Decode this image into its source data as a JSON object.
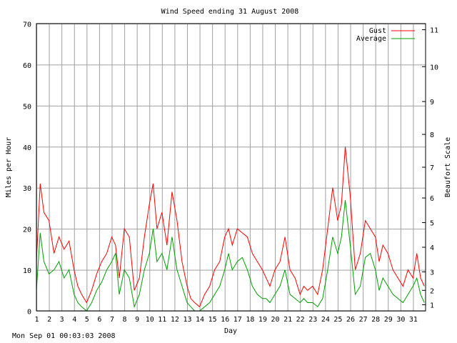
{
  "chart_data": {
    "type": "line",
    "title": "Wind Speed ending 31 August 2008",
    "xlabel": "Day",
    "ylabel": "Miles per Hour",
    "y2label": "Beaufort Scale",
    "xlim": [
      1,
      32
    ],
    "ylim": [
      0,
      70
    ],
    "grid": true,
    "legend_position": "top-right",
    "x_ticks": [
      1,
      2,
      3,
      4,
      5,
      6,
      7,
      8,
      9,
      10,
      11,
      12,
      13,
      14,
      15,
      16,
      17,
      18,
      19,
      20,
      21,
      22,
      23,
      24,
      25,
      26,
      27,
      28,
      29,
      30,
      31
    ],
    "y_ticks": [
      0,
      10,
      20,
      30,
      40,
      50,
      60,
      70
    ],
    "beaufort_ticks": [
      {
        "label": "1",
        "mph": 1.5
      },
      {
        "label": "2",
        "mph": 5
      },
      {
        "label": "3",
        "mph": 9.5
      },
      {
        "label": "4",
        "mph": 15.5
      },
      {
        "label": "5",
        "mph": 21.5
      },
      {
        "label": "6",
        "mph": 27.5
      },
      {
        "label": "7",
        "mph": 35
      },
      {
        "label": "8",
        "mph": 43
      },
      {
        "label": "9",
        "mph": 51
      },
      {
        "label": "10",
        "mph": 59.5
      },
      {
        "label": "11",
        "mph": 68.5
      }
    ],
    "series": [
      {
        "name": "Gust",
        "color": "#ff0000",
        "x": [
          1.0,
          1.3,
          1.6,
          2.0,
          2.4,
          2.8,
          3.2,
          3.6,
          4.0,
          4.3,
          4.6,
          5.0,
          5.4,
          5.8,
          6.2,
          6.6,
          7.0,
          7.3,
          7.6,
          8.0,
          8.4,
          8.8,
          9.2,
          9.6,
          10.0,
          10.3,
          10.6,
          11.0,
          11.4,
          11.8,
          12.2,
          12.6,
          13.0,
          13.3,
          13.6,
          14.0,
          14.4,
          14.8,
          15.2,
          15.6,
          16.0,
          16.3,
          16.6,
          17.0,
          17.4,
          17.8,
          18.2,
          18.6,
          19.0,
          19.3,
          19.6,
          20.0,
          20.4,
          20.8,
          21.2,
          21.6,
          22.0,
          22.3,
          22.6,
          23.0,
          23.4,
          23.8,
          24.2,
          24.6,
          25.0,
          25.3,
          25.6,
          26.0,
          26.4,
          26.8,
          27.2,
          27.6,
          28.0,
          28.3,
          28.6,
          29.0,
          29.4,
          29.8,
          30.2,
          30.6,
          31.0,
          31.3,
          31.6,
          31.9
        ],
        "y": [
          12,
          31,
          24,
          22,
          14,
          18,
          15,
          17,
          10,
          6,
          4,
          2,
          5,
          9,
          12,
          14,
          18,
          16,
          8,
          20,
          18,
          5,
          8,
          18,
          26,
          31,
          20,
          24,
          16,
          29,
          22,
          12,
          6,
          3,
          2,
          1,
          4,
          6,
          10,
          12,
          18,
          20,
          16,
          20,
          19,
          18,
          14,
          12,
          10,
          8,
          6,
          10,
          12,
          18,
          10,
          8,
          4,
          6,
          5,
          6,
          4,
          10,
          20,
          30,
          22,
          26,
          40,
          28,
          10,
          14,
          22,
          20,
          18,
          12,
          16,
          14,
          10,
          8,
          6,
          10,
          8,
          14,
          8,
          6
        ]
      },
      {
        "name": "Average",
        "color": "#00a000",
        "x": [
          1.0,
          1.3,
          1.6,
          2.0,
          2.4,
          2.8,
          3.2,
          3.6,
          4.0,
          4.3,
          4.6,
          5.0,
          5.4,
          5.8,
          6.2,
          6.6,
          7.0,
          7.3,
          7.6,
          8.0,
          8.4,
          8.8,
          9.2,
          9.6,
          10.0,
          10.3,
          10.6,
          11.0,
          11.4,
          11.8,
          12.2,
          12.6,
          13.0,
          13.3,
          13.6,
          14.0,
          14.4,
          14.8,
          15.2,
          15.6,
          16.0,
          16.3,
          16.6,
          17.0,
          17.4,
          17.8,
          18.2,
          18.6,
          19.0,
          19.3,
          19.6,
          20.0,
          20.4,
          20.8,
          21.2,
          21.6,
          22.0,
          22.3,
          22.6,
          23.0,
          23.4,
          23.8,
          24.2,
          24.6,
          25.0,
          25.3,
          25.6,
          26.0,
          26.4,
          26.8,
          27.2,
          27.6,
          28.0,
          28.3,
          28.6,
          29.0,
          29.4,
          29.8,
          30.2,
          30.6,
          31.0,
          31.3,
          31.6,
          31.9
        ],
        "y": [
          5,
          19,
          12,
          9,
          10,
          12,
          8,
          10,
          4,
          2,
          1,
          0,
          2,
          5,
          7,
          10,
          12,
          14,
          4,
          10,
          8,
          1,
          4,
          10,
          14,
          20,
          12,
          14,
          10,
          18,
          10,
          6,
          2,
          1,
          0,
          0,
          1,
          2,
          4,
          6,
          10,
          14,
          10,
          12,
          13,
          10,
          6,
          4,
          3,
          3,
          2,
          4,
          6,
          10,
          4,
          3,
          2,
          3,
          2,
          2,
          1,
          3,
          10,
          18,
          14,
          18,
          27,
          16,
          4,
          6,
          13,
          14,
          10,
          5,
          8,
          6,
          4,
          3,
          2,
          4,
          6,
          8,
          4,
          2
        ]
      }
    ]
  },
  "footer": {
    "timestamp": "Mon Sep 01 00:03:03 2008"
  }
}
